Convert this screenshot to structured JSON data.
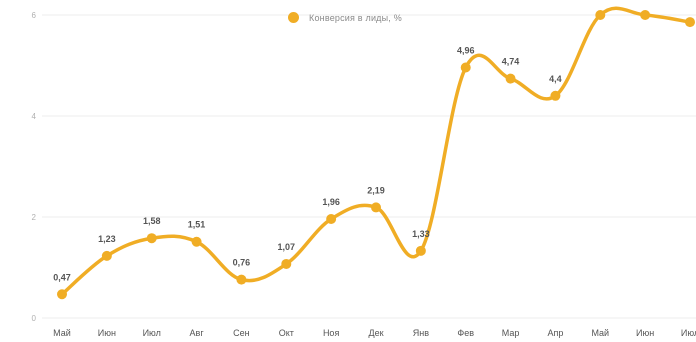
{
  "chart_data": {
    "type": "line",
    "categories": [
      "Май",
      "Июн",
      "Июл",
      "Авг",
      "Сен",
      "Окт",
      "Ноя",
      "Дек",
      "Янв",
      "Фев",
      "Мар",
      "Апр",
      "Май",
      "Июн",
      "Июл"
    ],
    "series": [
      {
        "name": "Конверсия в лиды, %",
        "values": [
          0.47,
          1.23,
          1.58,
          1.51,
          0.76,
          1.07,
          1.96,
          2.19,
          1.33,
          4.96,
          4.74,
          4.4,
          6.0,
          6.0,
          5.86
        ],
        "data_labels": [
          "0,47",
          "1,23",
          "1,58",
          "1,51",
          "0,76",
          "1,07",
          "1,96",
          "2,19",
          "1,33",
          "4,96",
          "4,74",
          "4,4",
          null,
          null,
          null
        ]
      }
    ],
    "y_ticks": [
      0,
      2,
      4,
      6
    ],
    "ylim": [
      0,
      6
    ],
    "grid": true,
    "legend_placement": "top",
    "line_color": "#f0ad25",
    "title": "",
    "xlabel": "",
    "ylabel": ""
  }
}
